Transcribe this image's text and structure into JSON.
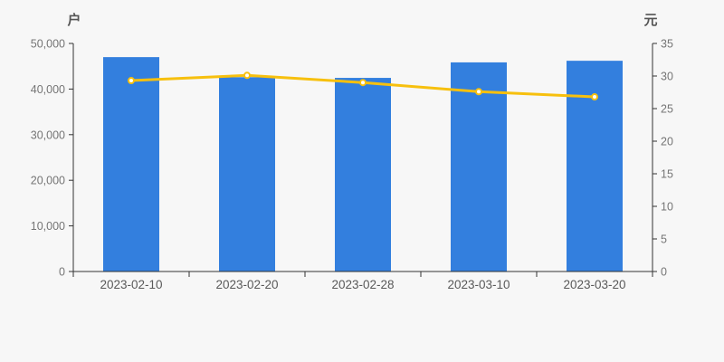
{
  "chart_data": {
    "type": "bar",
    "subtype": "bar-line-combo",
    "title": "",
    "categories": [
      "2023-02-10",
      "2023-02-20",
      "2023-02-28",
      "2023-03-10",
      "2023-03-20"
    ],
    "series": [
      {
        "role": "bars",
        "axis": "left",
        "values": [
          47000,
          42600,
          42450,
          45850,
          46200
        ]
      },
      {
        "role": "line",
        "axis": "right",
        "values": [
          29.3,
          30.1,
          29.0,
          27.6,
          26.8
        ]
      }
    ],
    "left_axis": {
      "unit": "户",
      "min": 0,
      "max": 50000,
      "step": 10000,
      "tick_values": [
        0,
        10000,
        20000,
        30000,
        40000,
        50000
      ],
      "tick_labels": [
        "0",
        "10,000",
        "20,000",
        "30,000",
        "40,000",
        "50,000"
      ]
    },
    "right_axis": {
      "unit": "元",
      "min": 0,
      "max": 35,
      "step": 5,
      "tick_values": [
        0,
        5,
        10,
        15,
        20,
        25,
        30,
        35
      ],
      "tick_labels": [
        "0",
        "5",
        "10",
        "15",
        "20",
        "25",
        "30",
        "35"
      ]
    },
    "legend": "none",
    "grid": "off",
    "colors": {
      "background": "#f7f7f7",
      "bar": "#337fde",
      "line": "#f7c00e",
      "point_fill": "#ffffff",
      "point_stroke": "#f7c00e",
      "axis": "#333333",
      "y_tick_text": "#757575",
      "x_tick_text": "#595959",
      "unit_text": "#555555"
    }
  }
}
